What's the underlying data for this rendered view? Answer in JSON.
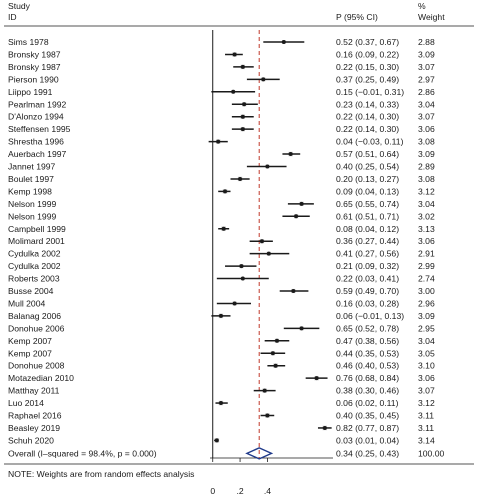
{
  "chart_data": {
    "type": "forest",
    "headers": {
      "study": "Study",
      "id": "ID",
      "estimate": "P (95% CI)",
      "weight_pct": "%",
      "weight": "Weight"
    },
    "reference_line": 0.34,
    "x_ticks": [
      {
        "value": 0,
        "label": "0"
      },
      {
        "value": 0.2,
        "label": ".2"
      },
      {
        "value": 0.4,
        "label": ".4"
      }
    ],
    "xlim": [
      -0.02,
      0.88
    ],
    "studies": [
      {
        "id": "Sims 1978",
        "es": 0.52,
        "lo": 0.37,
        "hi": 0.67,
        "ci": "0.52 (0.37, 0.67)",
        "weight": "2.88"
      },
      {
        "id": "Bronsky 1987",
        "es": 0.16,
        "lo": 0.09,
        "hi": 0.22,
        "ci": "0.16 (0.09, 0.22)",
        "weight": "3.09"
      },
      {
        "id": "Bronsky 1987",
        "es": 0.22,
        "lo": 0.15,
        "hi": 0.3,
        "ci": "0.22 (0.15, 0.30)",
        "weight": "3.07"
      },
      {
        "id": "Pierson 1990",
        "es": 0.37,
        "lo": 0.25,
        "hi": 0.49,
        "ci": "0.37 (0.25, 0.49)",
        "weight": "2.97"
      },
      {
        "id": "Liippo 1991",
        "es": 0.15,
        "lo": -0.01,
        "hi": 0.31,
        "ci": "0.15 (−0.01, 0.31)",
        "weight": "2.86"
      },
      {
        "id": "Pearlman 1992",
        "es": 0.23,
        "lo": 0.14,
        "hi": 0.33,
        "ci": "0.23 (0.14, 0.33)",
        "weight": "3.04"
      },
      {
        "id": "D'Alonzo 1994",
        "es": 0.22,
        "lo": 0.14,
        "hi": 0.3,
        "ci": "0.22 (0.14, 0.30)",
        "weight": "3.07"
      },
      {
        "id": "Steffensen 1995",
        "es": 0.22,
        "lo": 0.14,
        "hi": 0.3,
        "ci": "0.22 (0.14, 0.30)",
        "weight": "3.06"
      },
      {
        "id": "Shrestha 1996",
        "es": 0.04,
        "lo": -0.03,
        "hi": 0.11,
        "ci": "0.04 (−0.03, 0.11)",
        "weight": "3.08"
      },
      {
        "id": "Auerbach 1997",
        "es": 0.57,
        "lo": 0.51,
        "hi": 0.64,
        "ci": "0.57 (0.51, 0.64)",
        "weight": "3.09"
      },
      {
        "id": "Jannet 1997",
        "es": 0.4,
        "lo": 0.25,
        "hi": 0.54,
        "ci": "0.40 (0.25, 0.54)",
        "weight": "2.89"
      },
      {
        "id": "Boulet 1997",
        "es": 0.2,
        "lo": 0.13,
        "hi": 0.27,
        "ci": "0.20 (0.13, 0.27)",
        "weight": "3.08"
      },
      {
        "id": "Kemp 1998",
        "es": 0.09,
        "lo": 0.04,
        "hi": 0.13,
        "ci": "0.09 (0.04, 0.13)",
        "weight": "3.12"
      },
      {
        "id": "Nelson 1999",
        "es": 0.65,
        "lo": 0.55,
        "hi": 0.74,
        "ci": "0.65 (0.55, 0.74)",
        "weight": "3.04"
      },
      {
        "id": "Nelson 1999",
        "es": 0.61,
        "lo": 0.51,
        "hi": 0.71,
        "ci": "0.61 (0.51, 0.71)",
        "weight": "3.02"
      },
      {
        "id": "Campbell 1999",
        "es": 0.08,
        "lo": 0.04,
        "hi": 0.12,
        "ci": "0.08 (0.04, 0.12)",
        "weight": "3.13"
      },
      {
        "id": "Molimard 2001",
        "es": 0.36,
        "lo": 0.27,
        "hi": 0.44,
        "ci": "0.36 (0.27, 0.44)",
        "weight": "3.06"
      },
      {
        "id": "Cydulka 2002",
        "es": 0.41,
        "lo": 0.27,
        "hi": 0.56,
        "ci": "0.41 (0.27, 0.56)",
        "weight": "2.91"
      },
      {
        "id": "Cydulka 2002",
        "es": 0.21,
        "lo": 0.09,
        "hi": 0.32,
        "ci": "0.21 (0.09, 0.32)",
        "weight": "2.99"
      },
      {
        "id": "Roberts 2003",
        "es": 0.22,
        "lo": 0.03,
        "hi": 0.41,
        "ci": "0.22 (0.03, 0.41)",
        "weight": "2.74"
      },
      {
        "id": "Busse 2004",
        "es": 0.59,
        "lo": 0.49,
        "hi": 0.7,
        "ci": "0.59 (0.49, 0.70)",
        "weight": "3.00"
      },
      {
        "id": "Mull 2004",
        "es": 0.16,
        "lo": 0.03,
        "hi": 0.28,
        "ci": "0.16 (0.03, 0.28)",
        "weight": "2.96"
      },
      {
        "id": "Balanag 2006",
        "es": 0.06,
        "lo": -0.01,
        "hi": 0.13,
        "ci": "0.06 (−0.01, 0.13)",
        "weight": "3.09"
      },
      {
        "id": "Donohue 2006",
        "es": 0.65,
        "lo": 0.52,
        "hi": 0.78,
        "ci": "0.65 (0.52, 0.78)",
        "weight": "2.95"
      },
      {
        "id": "Kemp 2007",
        "es": 0.47,
        "lo": 0.38,
        "hi": 0.56,
        "ci": "0.47 (0.38, 0.56)",
        "weight": "3.04"
      },
      {
        "id": "Kemp 2007",
        "es": 0.44,
        "lo": 0.35,
        "hi": 0.53,
        "ci": "0.44 (0.35, 0.53)",
        "weight": "3.05"
      },
      {
        "id": "Donohue 2008",
        "es": 0.46,
        "lo": 0.4,
        "hi": 0.53,
        "ci": "0.46 (0.40, 0.53)",
        "weight": "3.10"
      },
      {
        "id": "Motazedian 2010",
        "es": 0.76,
        "lo": 0.68,
        "hi": 0.84,
        "ci": "0.76 (0.68, 0.84)",
        "weight": "3.06"
      },
      {
        "id": "Matthay 2011",
        "es": 0.38,
        "lo": 0.3,
        "hi": 0.46,
        "ci": "0.38 (0.30, 0.46)",
        "weight": "3.07"
      },
      {
        "id": "Luo 2014",
        "es": 0.06,
        "lo": 0.02,
        "hi": 0.11,
        "ci": "0.06 (0.02, 0.11)",
        "weight": "3.12"
      },
      {
        "id": "Raphael 2016",
        "es": 0.4,
        "lo": 0.35,
        "hi": 0.45,
        "ci": "0.40 (0.35, 0.45)",
        "weight": "3.11"
      },
      {
        "id": "Beasley 2019",
        "es": 0.82,
        "lo": 0.77,
        "hi": 0.87,
        "ci": "0.82 (0.77, 0.87)",
        "weight": "3.11"
      },
      {
        "id": "Schuh 2020",
        "es": 0.03,
        "lo": 0.01,
        "hi": 0.04,
        "ci": "0.03 (0.01, 0.04)",
        "weight": "3.14"
      }
    ],
    "overall": {
      "label": "Overall  (I–squared = 98.4%, p = 0.000)",
      "es": 0.34,
      "lo": 0.25,
      "hi": 0.43,
      "ci": "0.34 (0.25, 0.43)",
      "weight": "100.00"
    },
    "note": "NOTE: Weights are from random effects analysis",
    "colors": {
      "marker": "#1a1a1a",
      "weight_box": "#a6a6a6",
      "reference_line": "#c0392b",
      "overall_diamond": "#1f3a8a"
    }
  }
}
